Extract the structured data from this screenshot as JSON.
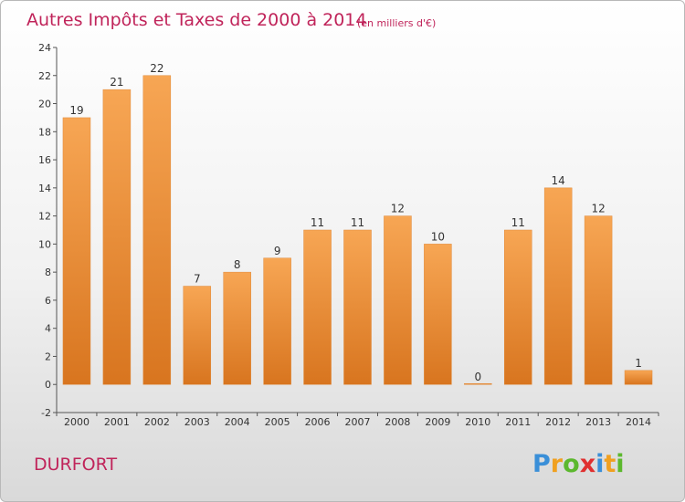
{
  "chart_data": {
    "type": "bar",
    "title": "Autres Impôts et Taxes de 2000 à 2014",
    "subtitle": "(en milliers d'€)",
    "categories": [
      "2000",
      "2001",
      "2002",
      "2003",
      "2004",
      "2005",
      "2006",
      "2007",
      "2008",
      "2009",
      "2010",
      "2011",
      "2012",
      "2013",
      "2014"
    ],
    "values": [
      19,
      21,
      22,
      7,
      8,
      9,
      11,
      11,
      12,
      10,
      0,
      11,
      14,
      12,
      1
    ],
    "ylim": [
      -2,
      24
    ],
    "yticks": [
      -2,
      0,
      2,
      4,
      6,
      8,
      10,
      12,
      14,
      16,
      18,
      20,
      22,
      24
    ],
    "grid": false,
    "bar_color": "#f0913a"
  },
  "location": "DURFORT",
  "logo": {
    "letters": [
      "P",
      "r",
      "o",
      "x",
      "i",
      "t",
      "i"
    ],
    "colors": [
      "#3a8fd8",
      "#f0a020",
      "#5cb82e",
      "#e03030",
      "#3a8fd8",
      "#f0a020",
      "#5cb82e"
    ]
  }
}
